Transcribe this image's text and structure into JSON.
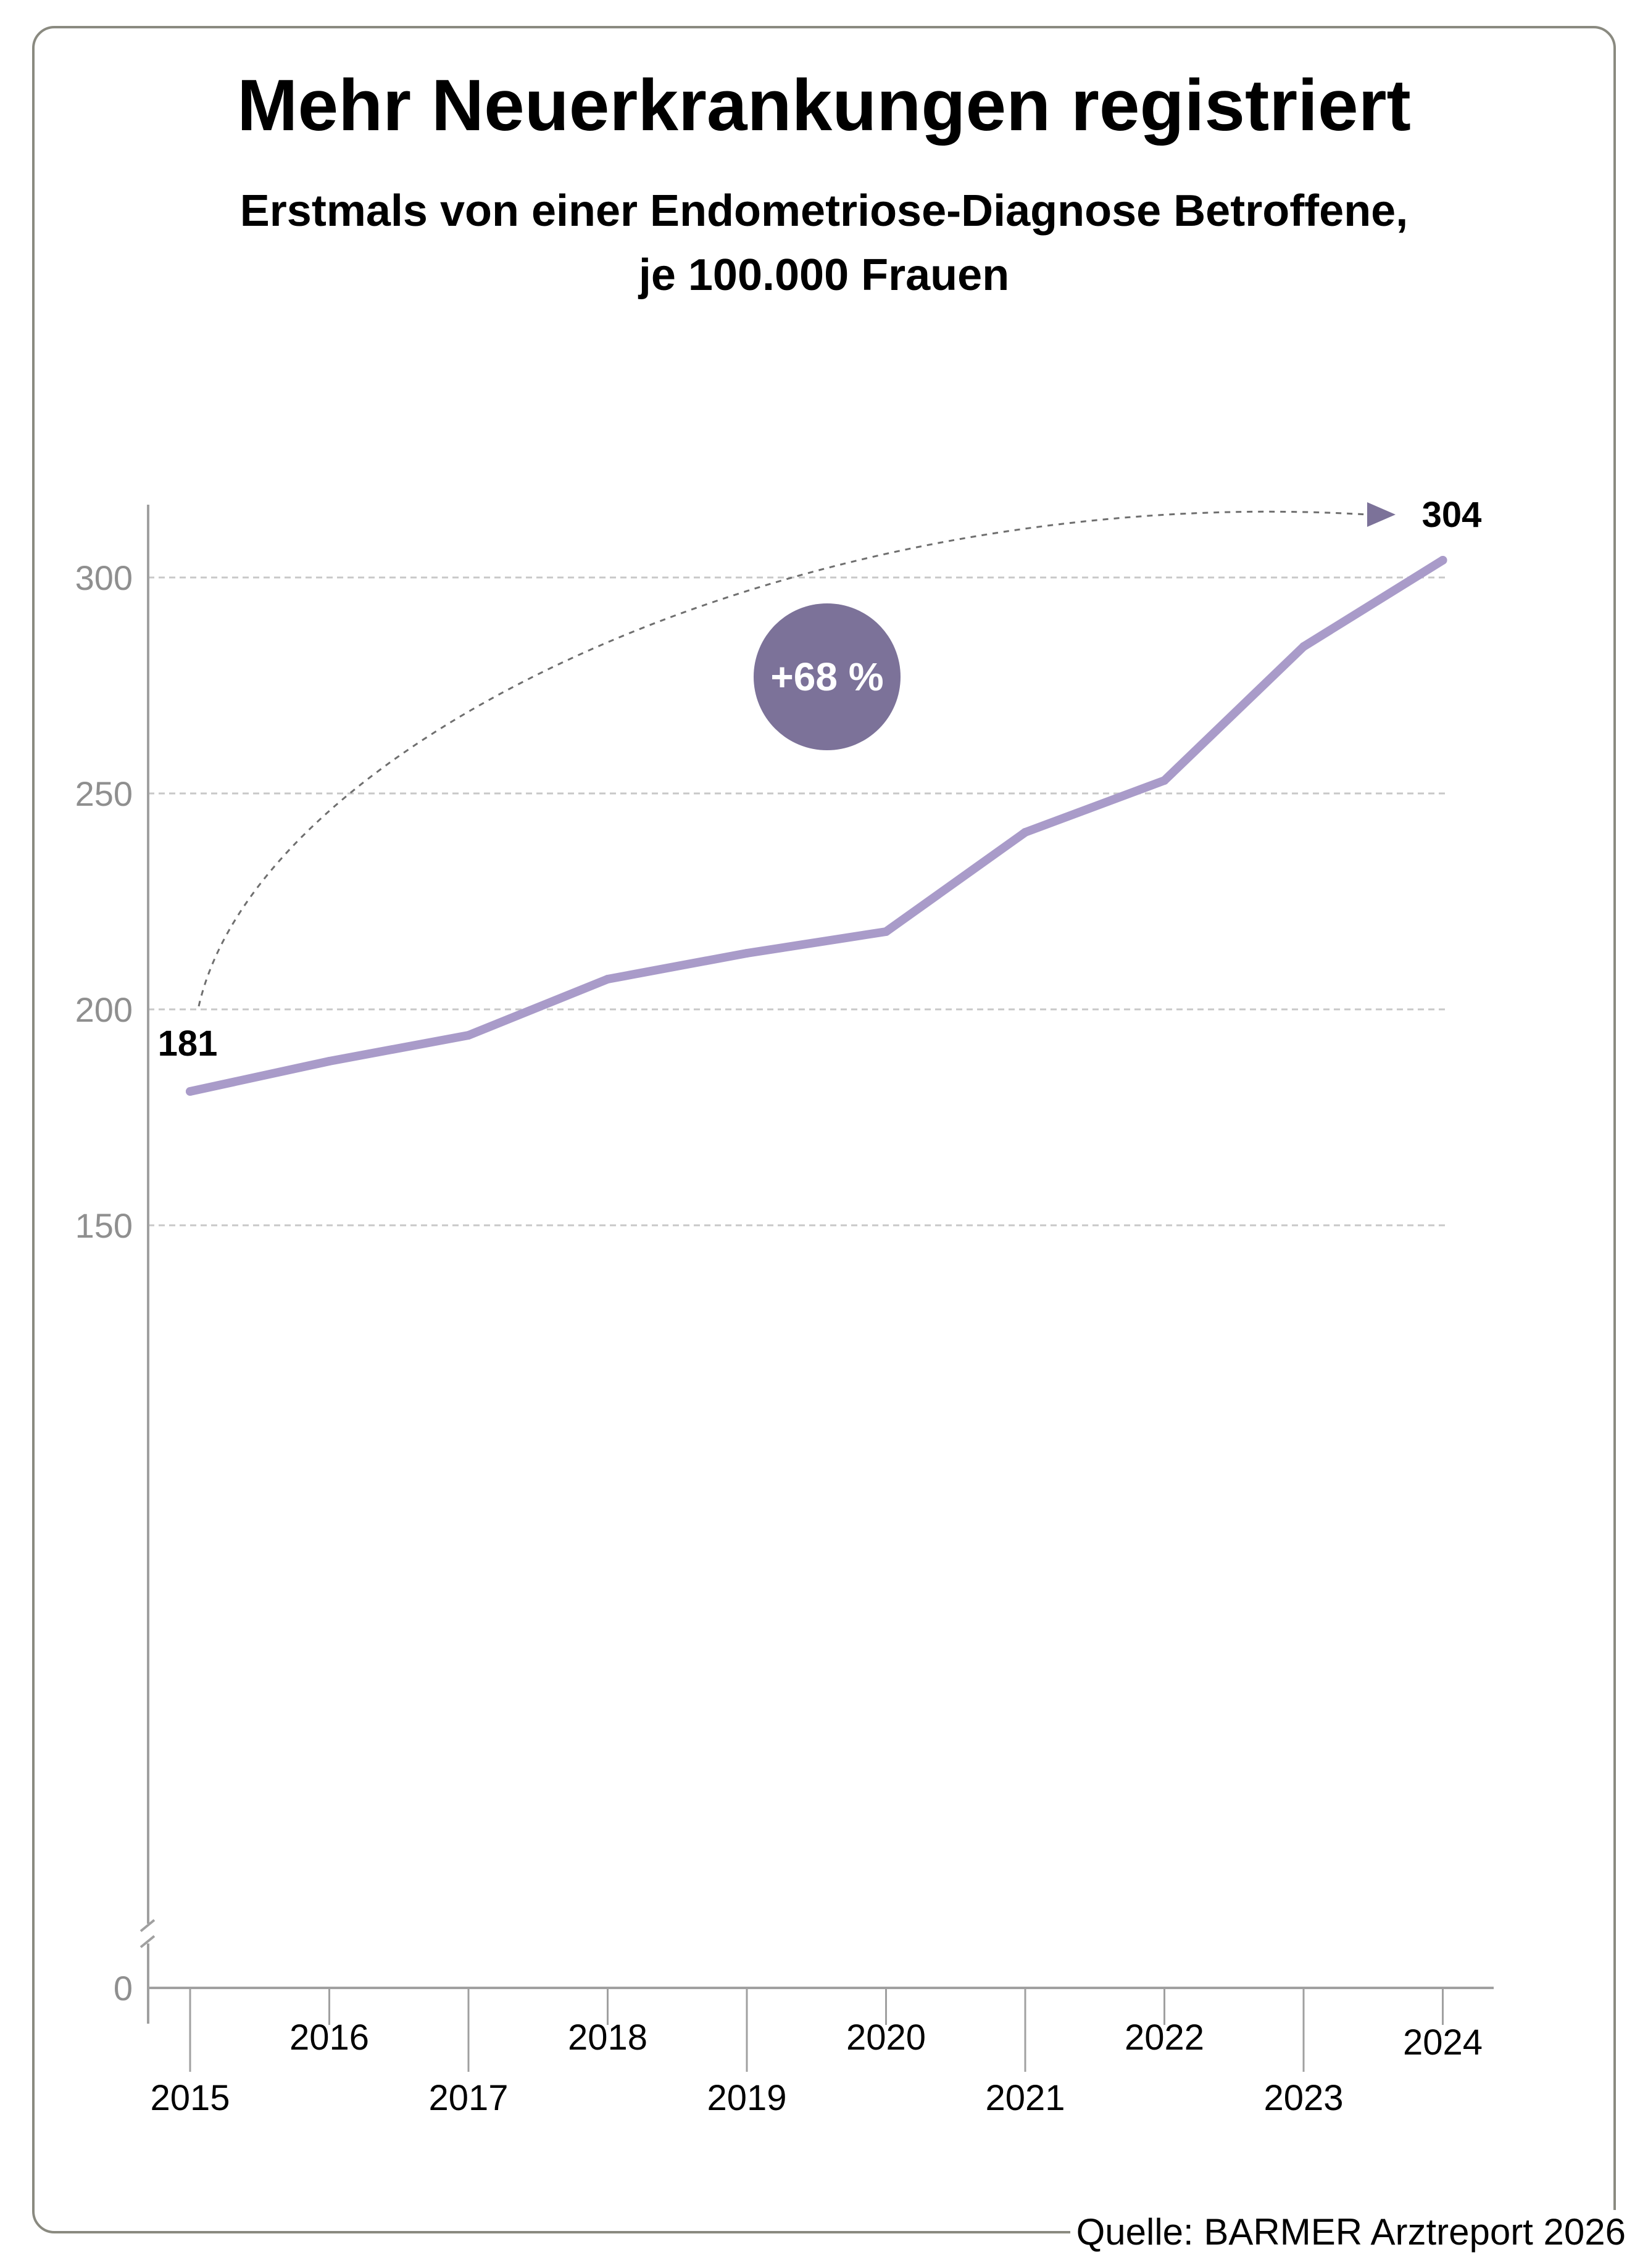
{
  "title": "Mehr Neuerkrankungen registriert",
  "subtitle_line1": "Erstmals von einer Endometriose-Diagnose Betroffene,",
  "subtitle_line2": "je 100.000  Frauen",
  "source": "Quelle: BARMER Arztreport 2026",
  "colors": {
    "line": "#a99bc9",
    "badge": "#7c7299",
    "grid": "#c8c8c8",
    "axis": "#a0a0a0"
  },
  "chart_data": {
    "type": "line",
    "title": "Mehr Neuerkrankungen registriert",
    "xlabel": "",
    "ylabel": "",
    "x": [
      "2015",
      "2016",
      "2017",
      "2018",
      "2019",
      "2020",
      "2021",
      "2022",
      "2023",
      "2024"
    ],
    "series": [
      {
        "values": [
          181,
          188,
          194,
          207,
          213,
          218,
          241,
          253,
          284,
          304
        ]
      }
    ],
    "y_ticks": [
      "300",
      "250",
      "200",
      "150",
      "0"
    ],
    "ylim": [
      150,
      313
    ],
    "axis_break": true,
    "grid": true,
    "annotations": {
      "start_label": "181",
      "end_label": "304",
      "change_label": "+68 %"
    }
  }
}
